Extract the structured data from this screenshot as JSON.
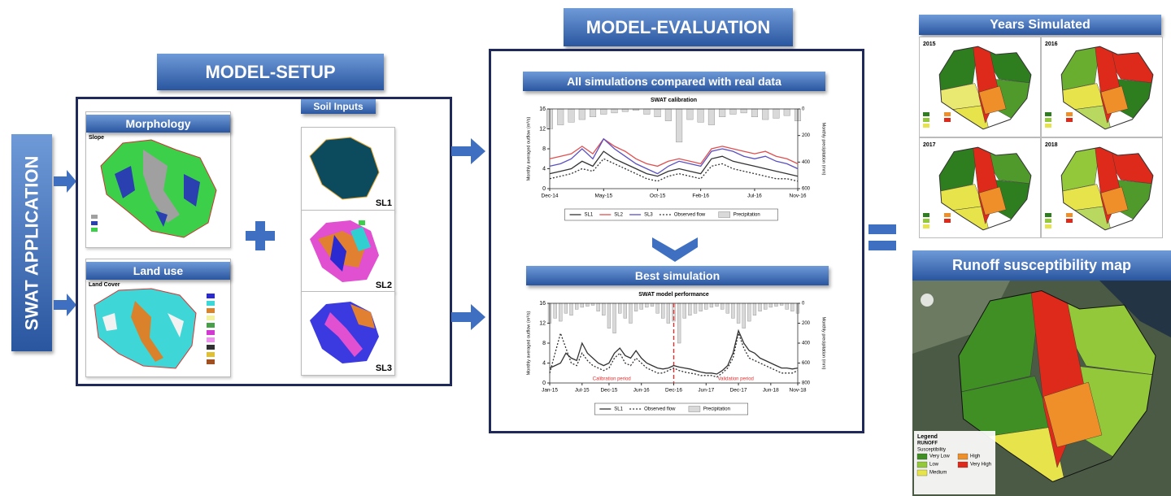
{
  "swat_application": "SWAT APPLICATION",
  "model_setup": {
    "title": "MODEL-SETUP",
    "morphology": {
      "title": "Morphology",
      "label": "Slope"
    },
    "land_use": {
      "title": "Land use",
      "label": "Land Cover"
    },
    "soil_inputs": {
      "title": "Soil Inputs",
      "layers": [
        "SL1",
        "SL2",
        "SL3"
      ]
    }
  },
  "model_evaluation": {
    "title": "MODEL-EVALUATION",
    "calibration_panel": {
      "header": "All simulations compared with real data",
      "chart": {
        "type": "line",
        "title": "SWAT calibration",
        "y_label": "Monthly averaged outflow (m³/s)",
        "y2_label": "Monthly precipitation (mm)",
        "categories": [
          "Dec-14",
          null,
          null,
          null,
          null,
          "May-15",
          null,
          null,
          null,
          null,
          "Oct-15",
          null,
          null,
          null,
          "Feb-16",
          null,
          null,
          null,
          null,
          "Jul-16",
          null,
          null,
          null,
          "Nov-16"
        ],
        "series": [
          {
            "name": "SL1",
            "color": "#333333",
            "dash": false,
            "values": [
              3,
              3.5,
              4,
              5.5,
              4.5,
              7.5,
              6,
              5,
              4,
              3,
              2.5,
              3.5,
              4,
              3.5,
              3,
              6,
              6.5,
              5.5,
              5,
              4.5,
              4,
              3.5,
              3,
              2.5
            ]
          },
          {
            "name": "SL2",
            "color": "#e05050",
            "dash": false,
            "values": [
              6,
              6.5,
              7,
              8.5,
              7,
              10,
              8.5,
              7.5,
              6,
              5,
              4.5,
              5.5,
              6,
              5.5,
              5,
              8,
              8.5,
              8,
              7.5,
              7,
              7.5,
              6.5,
              6,
              5
            ]
          },
          {
            "name": "SL3",
            "color": "#5a50c0",
            "dash": false,
            "values": [
              4.5,
              5,
              6,
              8,
              6,
              10,
              8,
              6.5,
              5,
              4,
              3,
              4.5,
              5.5,
              5,
              4.5,
              7.5,
              8,
              7.5,
              6.5,
              6,
              6.5,
              5.5,
              5,
              4
            ]
          },
          {
            "name": "Observed flow",
            "color": "#333333",
            "dash": true,
            "values": [
              2,
              2.5,
              3,
              4,
              3.5,
              6,
              5,
              4,
              3,
              2,
              1.5,
              2.5,
              3,
              2.5,
              2,
              4.5,
              5,
              4,
              3.5,
              3,
              2.5,
              2,
              2,
              1.5
            ]
          }
        ],
        "precipitation": {
          "name": "Precipitation",
          "color": "#d9d9d9",
          "axis": "y2",
          "values": [
            150,
            120,
            100,
            80,
            60,
            40,
            30,
            20,
            10,
            40,
            60,
            90,
            250,
            80,
            100,
            120,
            60,
            40,
            30,
            60,
            80,
            70,
            50,
            90
          ]
        },
        "ylim": [
          0,
          16
        ],
        "yticks": [
          0,
          4,
          8,
          12,
          16
        ],
        "y2lim": [
          600,
          0
        ],
        "y2ticks": [
          0,
          200,
          400,
          600
        ]
      }
    },
    "best_panel": {
      "header": "Best  simulation",
      "chart": {
        "type": "line",
        "title": "SWAT model performance",
        "y_label": "Monthly averaged outflow (m³/s)",
        "y2_label": "Monthly precipitation (mm)",
        "categories": [
          "Jan-15",
          null,
          null,
          null,
          null,
          null,
          "Jul-15",
          null,
          null,
          null,
          null,
          "Dec-15",
          null,
          null,
          null,
          null,
          null,
          "Jun-16",
          null,
          null,
          null,
          null,
          null,
          "Dec-16",
          null,
          null,
          null,
          null,
          null,
          "Jun-17",
          null,
          null,
          null,
          null,
          null,
          "Dec-17",
          null,
          null,
          null,
          null,
          null,
          "Jun-18",
          null,
          null,
          null,
          null,
          "Nov-18"
        ],
        "series": [
          {
            "name": "SL1",
            "color": "#333333",
            "dash": false,
            "values": [
              3,
              3.5,
              4,
              6,
              5,
              4.5,
              8,
              6,
              5,
              4,
              3.5,
              4,
              6,
              7,
              5.5,
              5,
              6.5,
              5,
              4,
              3.5,
              3,
              2.8,
              3,
              3.5,
              3.2,
              3,
              2.8,
              2.5,
              2.2,
              2,
              2,
              1.8,
              2.5,
              3.5,
              6,
              10.5,
              8,
              6.5,
              6,
              5,
              4.5,
              4,
              3.5,
              3,
              3,
              2.8,
              3
            ]
          },
          {
            "name": "Observed flow",
            "color": "#333333",
            "dash": true,
            "values": [
              2,
              6,
              10,
              7,
              4,
              3.5,
              6,
              4.5,
              3.5,
              3,
              2.5,
              3,
              5,
              6,
              4,
              3.5,
              5,
              4,
              3,
              2.5,
              2,
              2,
              2.5,
              3,
              2.5,
              2.2,
              2,
              1.8,
              1.5,
              1.5,
              1.5,
              1.2,
              2,
              3,
              5,
              10,
              7,
              5,
              4.5,
              4,
              3.5,
              3,
              2.5,
              2,
              2,
              2,
              2.5
            ]
          }
        ],
        "precipitation": {
          "name": "Precipitation",
          "color": "#d9d9d9",
          "axis": "y2",
          "values": [
            200,
            150,
            180,
            100,
            120,
            60,
            40,
            30,
            20,
            80,
            120,
            250,
            300,
            100,
            150,
            200,
            80,
            60,
            40,
            30,
            100,
            150,
            200,
            180,
            400,
            150,
            120,
            100,
            80,
            60,
            40,
            30,
            60,
            100,
            150,
            200,
            250,
            180,
            120,
            80,
            60,
            40,
            30,
            20,
            60,
            80,
            100
          ]
        },
        "ylim": [
          0,
          16
        ],
        "yticks": [
          0,
          4,
          8,
          12,
          16
        ],
        "y2lim": [
          800,
          0
        ],
        "y2ticks": [
          0,
          200,
          400,
          600,
          800
        ],
        "split_at": "Dec-16",
        "annotations": [
          "Calibration period",
          "Validation period"
        ]
      }
    }
  },
  "results": {
    "years_title": "Years Simulated",
    "years": [
      "2015",
      "2016",
      "2017",
      "2018"
    ],
    "runoff_title": "Runoff susceptibility map",
    "legend": {
      "title": "Legend",
      "subtitle": "RUNOFF",
      "heading": "Susceptibility",
      "items": [
        {
          "label": "Very Low",
          "color": "#3f8f25"
        },
        {
          "label": "Low",
          "color": "#92c83a"
        },
        {
          "label": "Medium",
          "color": "#e6e44a"
        },
        {
          "label": "High",
          "color": "#ef8f2a"
        },
        {
          "label": "Very High",
          "color": "#dd2a1a"
        }
      ]
    }
  }
}
